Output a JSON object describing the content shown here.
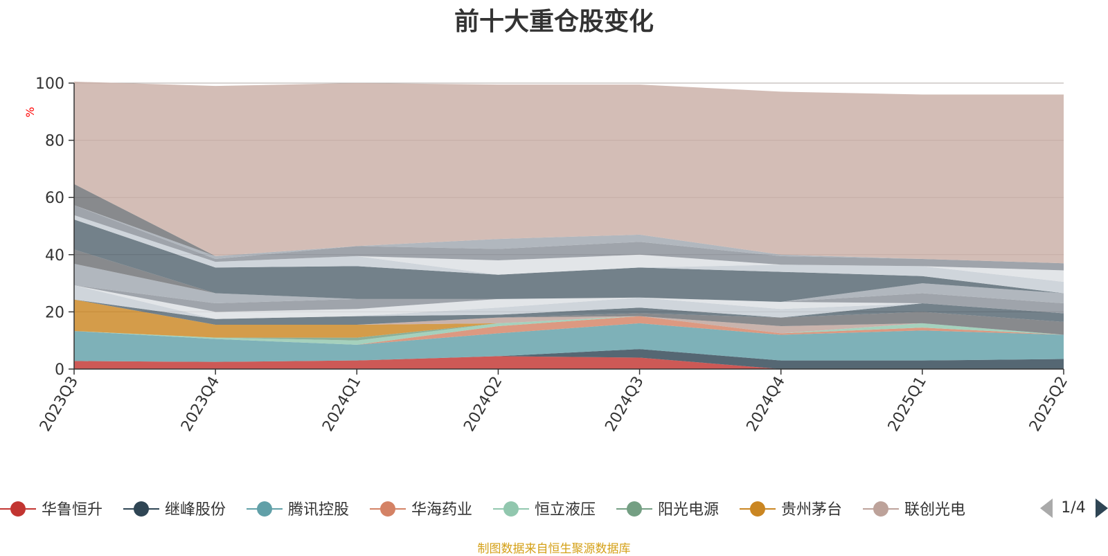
{
  "header": {
    "title": "前十大重仓股变化"
  },
  "footer": {
    "note": "制图数据来自恒生聚源数据库"
  },
  "legend_nav": {
    "page": "1/4"
  },
  "chart_data": {
    "type": "area",
    "stacked": true,
    "title": "前十大重仓股变化",
    "ylabel": "%",
    "ylim": [
      0,
      100
    ],
    "yticks": [
      0,
      20,
      40,
      60,
      80,
      100
    ],
    "grid": true,
    "legend_position": "bottom",
    "categories": [
      "2023Q3",
      "2023Q4",
      "2024Q1",
      "2024Q2",
      "2024Q3",
      "2024Q4",
      "2025Q1",
      "2025Q2"
    ],
    "series": [
      {
        "name": "华鲁恒升",
        "color": "#c23531",
        "values": [
          2.8,
          2.5,
          3.0,
          4.5,
          4.0,
          0,
          0,
          0
        ]
      },
      {
        "name": "继峰股份",
        "color": "#2f4554",
        "values": [
          0,
          0,
          0,
          0,
          3.0,
          3.0,
          3.0,
          3.5
        ]
      },
      {
        "name": "腾讯控股",
        "color": "#61a0a8",
        "values": [
          10.5,
          8.0,
          5.5,
          8.0,
          9.0,
          9.0,
          10.5,
          8.5
        ]
      },
      {
        "name": "华海药业",
        "color": "#d48265",
        "values": [
          0,
          0,
          0,
          2.5,
          2.5,
          0.5,
          1.0,
          0
        ]
      },
      {
        "name": "恒立液压",
        "color": "#91c7ae",
        "values": [
          0,
          0.5,
          1.5,
          1.0,
          0,
          0,
          1.5,
          0
        ]
      },
      {
        "name": "阳光电源",
        "color": "#749f83",
        "values": [
          0,
          0,
          1.0,
          0,
          0,
          0,
          0,
          0
        ]
      },
      {
        "name": "贵州茅台",
        "color": "#ca8622",
        "values": [
          11.0,
          4.5,
          4.5,
          0,
          0,
          0,
          0,
          0
        ]
      },
      {
        "name": "联创光电",
        "color": "#bda29a",
        "values": [
          0,
          0,
          0,
          2.0,
          0,
          2.5,
          0,
          0
        ]
      },
      {
        "values": [
          0,
          0,
          0,
          0,
          1.0,
          3.0,
          4.0,
          4.5
        ]
      },
      {
        "values": [
          0,
          2.0,
          3.0,
          1.0,
          2.0,
          0,
          3.0,
          3.0
        ]
      },
      {
        "values": [
          5.0,
          0,
          0,
          2.5,
          3.5,
          3.0,
          0,
          0
        ]
      },
      {
        "values": [
          0,
          2.5,
          2.5,
          3.0,
          0,
          2.5,
          0,
          0
        ]
      },
      {
        "values": [
          0,
          3.0,
          3.5,
          0,
          0,
          0,
          3.5,
          3.5
        ]
      },
      {
        "values": [
          7.5,
          3.5,
          0,
          0,
          0,
          0,
          3.5,
          3.5
        ]
      },
      {
        "values": [
          5.0,
          0,
          0,
          0,
          0,
          0,
          0,
          0
        ]
      },
      {
        "values": [
          10.5,
          9.0,
          11.5,
          8.5,
          10.5,
          10.5,
          2.5,
          0
        ]
      },
      {
        "values": [
          1.5,
          2.0,
          3.5,
          0,
          0,
          2.5,
          3.5,
          4.0
        ]
      },
      {
        "values": [
          0,
          0,
          0,
          5.0,
          4.5,
          0,
          0,
          4.0
        ]
      },
      {
        "values": [
          3.5,
          1.0,
          3.5,
          4.0,
          4.5,
          3.0,
          2.5,
          2.5
        ]
      },
      {
        "values": [
          0,
          1.0,
          0,
          3.5,
          2.5,
          0.5,
          0,
          0
        ]
      },
      {
        "values": [
          7.4,
          0,
          0,
          0,
          0,
          0,
          0,
          0
        ]
      },
      {
        "values": [
          35.8,
          59.5,
          57.0,
          54.0,
          52.5,
          57.0,
          57.5,
          59.0
        ]
      }
    ]
  }
}
